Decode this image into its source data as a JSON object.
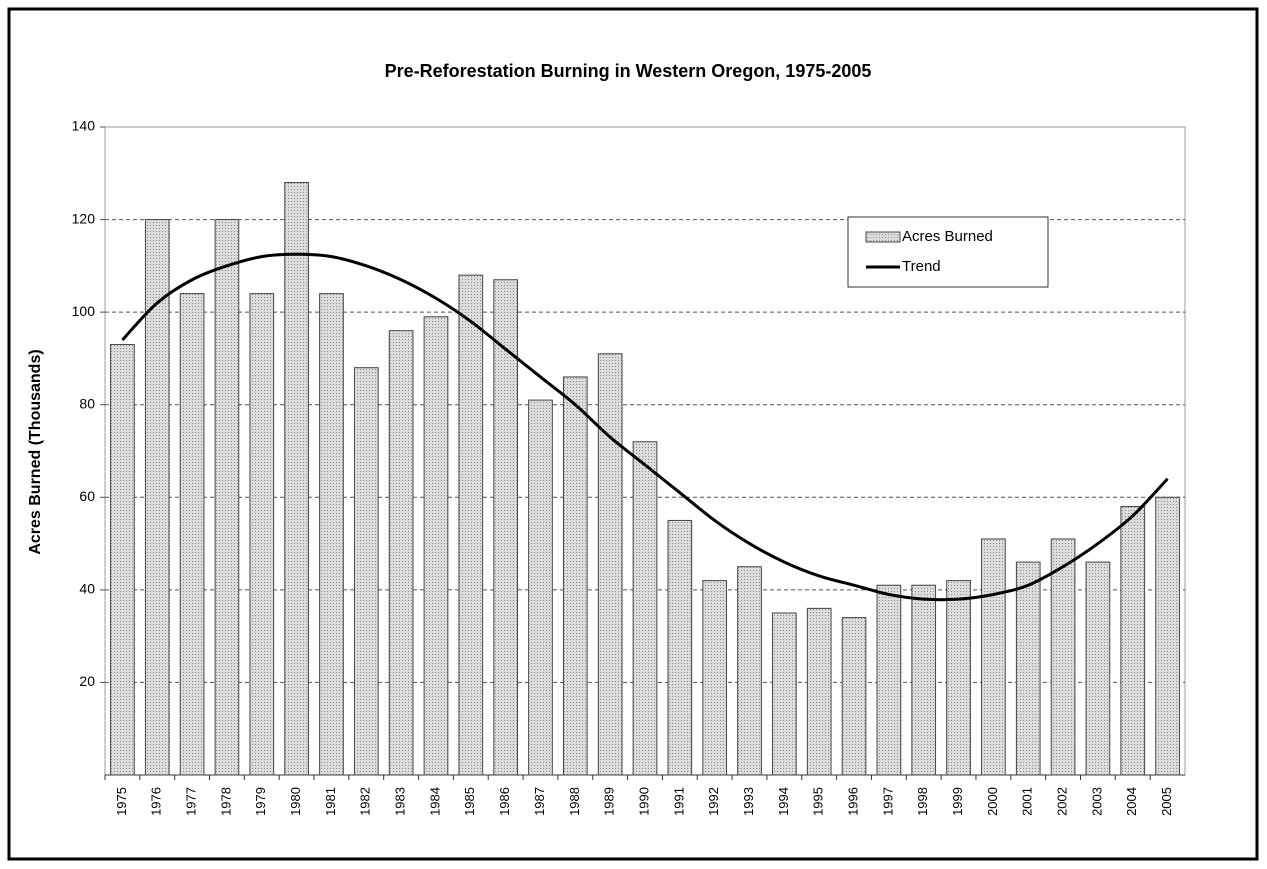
{
  "chart_data": {
    "type": "bar",
    "title": "Pre-Reforestation Burning in Western Oregon, 1975-2005",
    "y_label": "Acres Burned (Thousands)",
    "categories": [
      "1975",
      "1976",
      "1977",
      "1978",
      "1979",
      "1980",
      "1981",
      "1982",
      "1983",
      "1984",
      "1985",
      "1986",
      "1987",
      "1988",
      "1989",
      "1990",
      "1991",
      "1992",
      "1993",
      "1994",
      "1995",
      "1996",
      "1997",
      "1998",
      "1999",
      "2000",
      "2001",
      "2002",
      "2003",
      "2004",
      "2005"
    ],
    "series": [
      {
        "name": "Acres Burned",
        "type": "bar",
        "color": "#d4d4d4",
        "values": [
          93,
          120,
          104,
          120,
          104,
          128,
          104,
          88,
          96,
          99,
          108,
          107,
          81,
          86,
          91,
          72,
          55,
          42,
          45,
          35,
          36,
          34,
          41,
          41,
          42,
          51,
          46,
          51,
          46,
          58,
          60
        ]
      },
      {
        "name": "Trend",
        "type": "line",
        "color": "#000000",
        "values": [
          94,
          102,
          107,
          110,
          112,
          112.5,
          112,
          110,
          107,
          103,
          98,
          92,
          86,
          80,
          73,
          67,
          61,
          55,
          50,
          46,
          43,
          41,
          39,
          38,
          38,
          39,
          41,
          45,
          50,
          56,
          64
        ]
      }
    ],
    "ylim": [
      0,
      140
    ],
    "yticks": [
      20,
      40,
      60,
      80,
      100,
      120,
      140
    ],
    "grid": true,
    "legend": "upper-right"
  }
}
